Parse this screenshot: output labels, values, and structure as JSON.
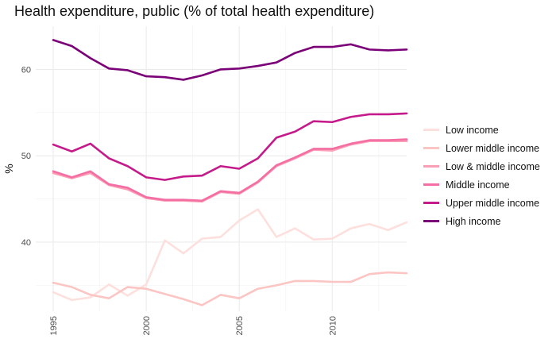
{
  "title": "Health expenditure, public (% of total health expenditure)",
  "chart_data": {
    "type": "line",
    "title": "Health expenditure, public (% of total health expenditure)",
    "xlabel": "",
    "ylabel": "%",
    "xlim": [
      1995,
      2014
    ],
    "ylim": [
      32,
      65
    ],
    "x_ticks": [
      1995,
      2000,
      2005,
      2010
    ],
    "y_ticks": [
      40,
      50,
      60
    ],
    "grid": true,
    "legend_position": "right",
    "x": [
      1995,
      1996,
      1997,
      1998,
      1999,
      2000,
      2001,
      2002,
      2003,
      2004,
      2005,
      2006,
      2007,
      2008,
      2009,
      2010,
      2011,
      2012,
      2013,
      2014
    ],
    "series": [
      {
        "name": "Low income",
        "color": "#fde0dd",
        "values": [
          34.2,
          33.3,
          33.6,
          35.1,
          33.8,
          35.1,
          40.2,
          38.7,
          40.4,
          40.6,
          42.5,
          43.8,
          40.6,
          41.6,
          40.3,
          40.4,
          41.6,
          42.1,
          41.4,
          42.3
        ]
      },
      {
        "name": "Lower middle income",
        "color": "#fbc5c3",
        "values": [
          35.3,
          34.8,
          33.9,
          33.5,
          34.8,
          34.6,
          34.0,
          33.4,
          32.7,
          33.9,
          33.5,
          34.6,
          35.0,
          35.5,
          35.5,
          35.4,
          35.4,
          36.3,
          36.5,
          36.4
        ]
      },
      {
        "name": "Low & middle income",
        "color": "#fa9fb5",
        "values": [
          48.0,
          47.4,
          48.0,
          46.6,
          46.1,
          45.1,
          44.8,
          44.8,
          44.7,
          45.8,
          45.6,
          46.9,
          48.8,
          49.7,
          50.7,
          50.6,
          51.3,
          51.7,
          51.7,
          51.7
        ]
      },
      {
        "name": "Middle income",
        "color": "#f46ea3",
        "values": [
          48.2,
          47.5,
          48.2,
          46.7,
          46.3,
          45.2,
          44.9,
          44.9,
          44.8,
          45.9,
          45.7,
          47.0,
          48.9,
          49.8,
          50.8,
          50.8,
          51.4,
          51.8,
          51.8,
          51.9
        ]
      },
      {
        "name": "Upper middle income",
        "color": "#c51b8a",
        "values": [
          51.3,
          50.5,
          51.4,
          49.7,
          48.8,
          47.5,
          47.2,
          47.6,
          47.7,
          48.8,
          48.5,
          49.7,
          52.1,
          52.8,
          54.0,
          53.9,
          54.5,
          54.8,
          54.8,
          54.9
        ]
      },
      {
        "name": "High income",
        "color": "#7a0177",
        "values": [
          63.4,
          62.7,
          61.3,
          60.1,
          59.9,
          59.2,
          59.1,
          58.8,
          59.3,
          60.0,
          60.1,
          60.4,
          60.8,
          61.9,
          62.6,
          62.6,
          62.9,
          62.3,
          62.2,
          62.3
        ]
      }
    ]
  }
}
